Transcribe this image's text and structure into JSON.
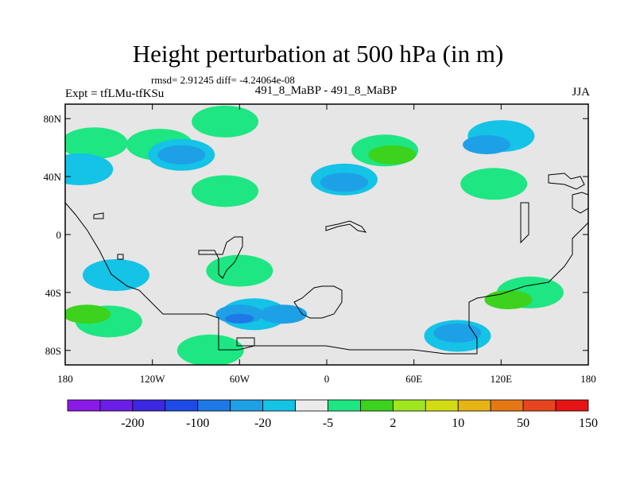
{
  "title": "Height perturbation at 500 hPa (in m)",
  "stats": "rmsd= 2.91245 diff= -4.24064e-08",
  "left_label": "Expt = tfLMu-tfKSu",
  "center_label": "491_8_MaBP - 491_8_MaBP",
  "right_label": "JJA",
  "map": {
    "projection": "cylindrical equidistant",
    "lon_range": [
      -180,
      180
    ],
    "lat_range": [
      -90,
      90
    ],
    "x_ticks": [
      {
        "lon": -180,
        "label": "180"
      },
      {
        "lon": -120,
        "label": "120W"
      },
      {
        "lon": -60,
        "label": "60W"
      },
      {
        "lon": 0,
        "label": "0"
      },
      {
        "lon": 60,
        "label": "60E"
      },
      {
        "lon": 120,
        "label": "120E"
      },
      {
        "lon": 180,
        "label": "180"
      }
    ],
    "y_ticks": [
      {
        "lat": 80,
        "label": "80N"
      },
      {
        "lat": 40,
        "label": "40N"
      },
      {
        "lat": 0,
        "label": "0"
      },
      {
        "lat": -40,
        "label": "40S"
      },
      {
        "lat": -80,
        "label": "80S"
      }
    ],
    "background_color": "#e6e6e6"
  },
  "colorbar": {
    "colors": [
      "#8c1ae6",
      "#6a1ee6",
      "#3c28e0",
      "#1e4be6",
      "#1e78e6",
      "#1ea0e6",
      "#14c3e6",
      "#ebebeb",
      "#1ee682",
      "#3cd21e",
      "#a0e61e",
      "#d2dc14",
      "#e6b414",
      "#e67814",
      "#e6461e",
      "#e61414"
    ],
    "labels": [
      {
        "after_index": 1,
        "text": "-200"
      },
      {
        "after_index": 3,
        "text": "-100"
      },
      {
        "after_index": 5,
        "text": "-20"
      },
      {
        "after_index": 7,
        "text": "-5"
      },
      {
        "after_index": 9,
        "text": "2"
      },
      {
        "after_index": 11,
        "text": "10"
      },
      {
        "after_index": 13,
        "text": "50"
      },
      {
        "after_index": 15,
        "text": "150"
      }
    ]
  },
  "anomalies": [
    {
      "lon": -115,
      "lat": 62,
      "level": 1,
      "sign": "+"
    },
    {
      "lon": -70,
      "lat": 78,
      "level": 1,
      "sign": "+"
    },
    {
      "lon": -160,
      "lat": 63,
      "level": 1,
      "sign": "+"
    },
    {
      "lon": -100,
      "lat": 55,
      "level": 1,
      "sign": "-"
    },
    {
      "lon": -100,
      "lat": 55,
      "level": 2,
      "sign": "-"
    },
    {
      "lon": -70,
      "lat": 30,
      "level": 1,
      "sign": "+"
    },
    {
      "lon": -170,
      "lat": 45,
      "level": 1,
      "sign": "-"
    },
    {
      "lon": 40,
      "lat": 58,
      "level": 1,
      "sign": "+"
    },
    {
      "lon": 45,
      "lat": 55,
      "level": 2,
      "sign": "+"
    },
    {
      "lon": 12,
      "lat": 38,
      "level": 1,
      "sign": "-"
    },
    {
      "lon": 12,
      "lat": 36,
      "level": 2,
      "sign": "-"
    },
    {
      "lon": 120,
      "lat": 68,
      "level": 1,
      "sign": "-"
    },
    {
      "lon": 110,
      "lat": 62,
      "level": 2,
      "sign": "-"
    },
    {
      "lon": 115,
      "lat": 35,
      "level": 1,
      "sign": "+"
    },
    {
      "lon": -60,
      "lat": -25,
      "level": 1,
      "sign": "+"
    },
    {
      "lon": -145,
      "lat": -28,
      "level": 1,
      "sign": "-"
    },
    {
      "lon": -150,
      "lat": -60,
      "level": 1,
      "sign": "+"
    },
    {
      "lon": -165,
      "lat": -55,
      "level": 2,
      "sign": "+"
    },
    {
      "lon": -50,
      "lat": -55,
      "level": 1,
      "sign": "-"
    },
    {
      "lon": -60,
      "lat": -55,
      "level": 2,
      "sign": "-"
    },
    {
      "lon": -60,
      "lat": -58,
      "level": 3,
      "sign": "-"
    },
    {
      "lon": -80,
      "lat": -80,
      "level": 1,
      "sign": "+"
    },
    {
      "lon": -30,
      "lat": -55,
      "level": 2,
      "sign": "-"
    },
    {
      "lon": 140,
      "lat": -40,
      "level": 1,
      "sign": "+"
    },
    {
      "lon": 125,
      "lat": -45,
      "level": 2,
      "sign": "+"
    },
    {
      "lon": 90,
      "lat": -70,
      "level": 1,
      "sign": "-"
    },
    {
      "lon": 90,
      "lat": -68,
      "level": 2,
      "sign": "-"
    }
  ]
}
